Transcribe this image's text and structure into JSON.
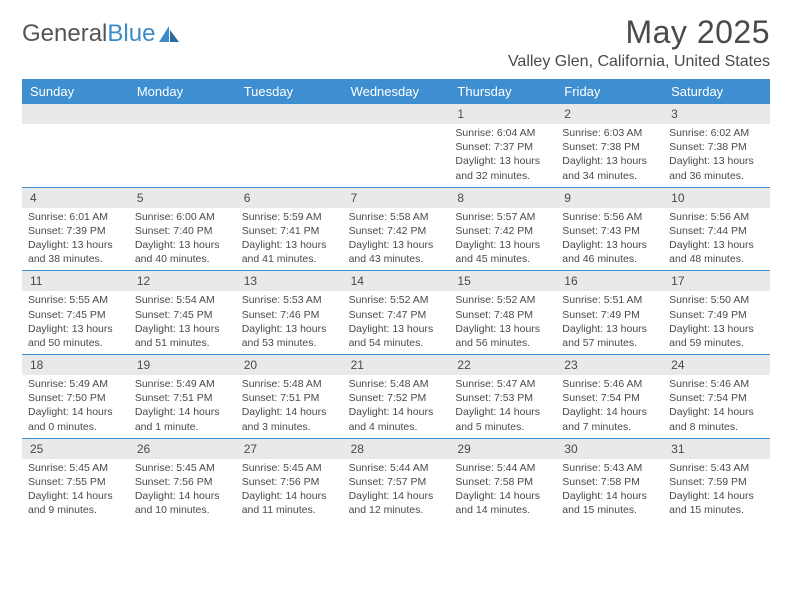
{
  "logo": {
    "text_gray": "General",
    "text_blue": "Blue"
  },
  "title": "May 2025",
  "location": "Valley Glen, California, United States",
  "colors": {
    "header_bg": "#3d8fd1",
    "header_text": "#ffffff",
    "daynum_bg": "#e9e9e9",
    "text": "#4a4a4a",
    "week_divider": "#3d8fd1",
    "page_bg": "#ffffff"
  },
  "layout": {
    "columns": 7,
    "rows": 5,
    "first_weekday_index": 4,
    "days_in_month": 31
  },
  "day_names": [
    "Sunday",
    "Monday",
    "Tuesday",
    "Wednesday",
    "Thursday",
    "Friday",
    "Saturday"
  ],
  "days": [
    {
      "n": 1,
      "sunrise": "6:04 AM",
      "sunset": "7:37 PM",
      "daylight": "13 hours and 32 minutes."
    },
    {
      "n": 2,
      "sunrise": "6:03 AM",
      "sunset": "7:38 PM",
      "daylight": "13 hours and 34 minutes."
    },
    {
      "n": 3,
      "sunrise": "6:02 AM",
      "sunset": "7:38 PM",
      "daylight": "13 hours and 36 minutes."
    },
    {
      "n": 4,
      "sunrise": "6:01 AM",
      "sunset": "7:39 PM",
      "daylight": "13 hours and 38 minutes."
    },
    {
      "n": 5,
      "sunrise": "6:00 AM",
      "sunset": "7:40 PM",
      "daylight": "13 hours and 40 minutes."
    },
    {
      "n": 6,
      "sunrise": "5:59 AM",
      "sunset": "7:41 PM",
      "daylight": "13 hours and 41 minutes."
    },
    {
      "n": 7,
      "sunrise": "5:58 AM",
      "sunset": "7:42 PM",
      "daylight": "13 hours and 43 minutes."
    },
    {
      "n": 8,
      "sunrise": "5:57 AM",
      "sunset": "7:42 PM",
      "daylight": "13 hours and 45 minutes."
    },
    {
      "n": 9,
      "sunrise": "5:56 AM",
      "sunset": "7:43 PM",
      "daylight": "13 hours and 46 minutes."
    },
    {
      "n": 10,
      "sunrise": "5:56 AM",
      "sunset": "7:44 PM",
      "daylight": "13 hours and 48 minutes."
    },
    {
      "n": 11,
      "sunrise": "5:55 AM",
      "sunset": "7:45 PM",
      "daylight": "13 hours and 50 minutes."
    },
    {
      "n": 12,
      "sunrise": "5:54 AM",
      "sunset": "7:45 PM",
      "daylight": "13 hours and 51 minutes."
    },
    {
      "n": 13,
      "sunrise": "5:53 AM",
      "sunset": "7:46 PM",
      "daylight": "13 hours and 53 minutes."
    },
    {
      "n": 14,
      "sunrise": "5:52 AM",
      "sunset": "7:47 PM",
      "daylight": "13 hours and 54 minutes."
    },
    {
      "n": 15,
      "sunrise": "5:52 AM",
      "sunset": "7:48 PM",
      "daylight": "13 hours and 56 minutes."
    },
    {
      "n": 16,
      "sunrise": "5:51 AM",
      "sunset": "7:49 PM",
      "daylight": "13 hours and 57 minutes."
    },
    {
      "n": 17,
      "sunrise": "5:50 AM",
      "sunset": "7:49 PM",
      "daylight": "13 hours and 59 minutes."
    },
    {
      "n": 18,
      "sunrise": "5:49 AM",
      "sunset": "7:50 PM",
      "daylight": "14 hours and 0 minutes."
    },
    {
      "n": 19,
      "sunrise": "5:49 AM",
      "sunset": "7:51 PM",
      "daylight": "14 hours and 1 minute."
    },
    {
      "n": 20,
      "sunrise": "5:48 AM",
      "sunset": "7:51 PM",
      "daylight": "14 hours and 3 minutes."
    },
    {
      "n": 21,
      "sunrise": "5:48 AM",
      "sunset": "7:52 PM",
      "daylight": "14 hours and 4 minutes."
    },
    {
      "n": 22,
      "sunrise": "5:47 AM",
      "sunset": "7:53 PM",
      "daylight": "14 hours and 5 minutes."
    },
    {
      "n": 23,
      "sunrise": "5:46 AM",
      "sunset": "7:54 PM",
      "daylight": "14 hours and 7 minutes."
    },
    {
      "n": 24,
      "sunrise": "5:46 AM",
      "sunset": "7:54 PM",
      "daylight": "14 hours and 8 minutes."
    },
    {
      "n": 25,
      "sunrise": "5:45 AM",
      "sunset": "7:55 PM",
      "daylight": "14 hours and 9 minutes."
    },
    {
      "n": 26,
      "sunrise": "5:45 AM",
      "sunset": "7:56 PM",
      "daylight": "14 hours and 10 minutes."
    },
    {
      "n": 27,
      "sunrise": "5:45 AM",
      "sunset": "7:56 PM",
      "daylight": "14 hours and 11 minutes."
    },
    {
      "n": 28,
      "sunrise": "5:44 AM",
      "sunset": "7:57 PM",
      "daylight": "14 hours and 12 minutes."
    },
    {
      "n": 29,
      "sunrise": "5:44 AM",
      "sunset": "7:58 PM",
      "daylight": "14 hours and 14 minutes."
    },
    {
      "n": 30,
      "sunrise": "5:43 AM",
      "sunset": "7:58 PM",
      "daylight": "14 hours and 15 minutes."
    },
    {
      "n": 31,
      "sunrise": "5:43 AM",
      "sunset": "7:59 PM",
      "daylight": "14 hours and 15 minutes."
    }
  ],
  "labels": {
    "sunrise": "Sunrise: ",
    "sunset": "Sunset: ",
    "daylight": "Daylight: "
  }
}
